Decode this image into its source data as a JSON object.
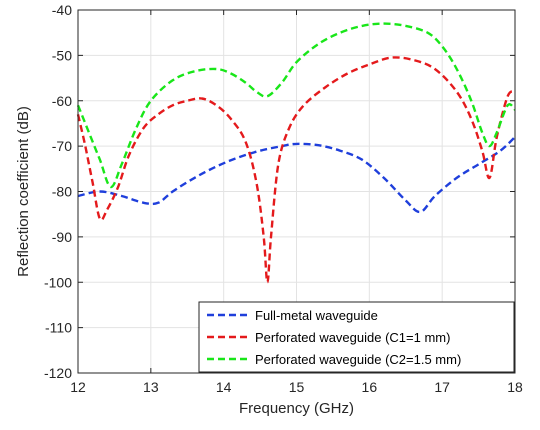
{
  "chart_data": {
    "type": "line",
    "xlabel": "Frequency (GHz)",
    "ylabel": "Reflection coefficient (dB)",
    "xlim": [
      12,
      18
    ],
    "ylim": [
      -120,
      -40
    ],
    "xticks": [
      12,
      13,
      14,
      15,
      16,
      17,
      18
    ],
    "yticks": [
      -120,
      -110,
      -100,
      -90,
      -80,
      -70,
      -60,
      -50,
      -40
    ],
    "xtick_labels": [
      "12",
      "13",
      "14",
      "15",
      "16",
      "17",
      "18"
    ],
    "ytick_labels": [
      "-120",
      "-110",
      "-100",
      "-90",
      "-80",
      "-70",
      "-60",
      "-50",
      "-40"
    ],
    "grid": true,
    "legend_position": "bottom-right",
    "series": [
      {
        "name": "Full-metal waveguide",
        "color": "#1f3fdb",
        "x": [
          12.0,
          12.3,
          12.6,
          12.9,
          13.1,
          13.3,
          13.6,
          13.9,
          14.2,
          14.5,
          14.8,
          15.0,
          15.3,
          15.6,
          15.9,
          16.2,
          16.5,
          16.7,
          16.9,
          17.2,
          17.5,
          17.8,
          18.0
        ],
        "y": [
          -81,
          -80,
          -81,
          -82.5,
          -82.5,
          -80,
          -77,
          -74.5,
          -72.5,
          -71,
          -70,
          -69.5,
          -69.8,
          -71,
          -73,
          -77,
          -82,
          -84.5,
          -81,
          -77,
          -74,
          -71,
          -68
        ]
      },
      {
        "name": "Perforated waveguide (C1=1 mm)",
        "color": "#e41a1c",
        "x": [
          12.0,
          12.1,
          12.2,
          12.3,
          12.4,
          12.55,
          12.7,
          12.9,
          13.1,
          13.3,
          13.5,
          13.7,
          13.9,
          14.1,
          14.3,
          14.45,
          14.55,
          14.6,
          14.65,
          14.75,
          14.9,
          15.1,
          15.4,
          15.7,
          16.0,
          16.3,
          16.6,
          16.9,
          17.2,
          17.4,
          17.55,
          17.65,
          17.75,
          17.9,
          18.0
        ],
        "y": [
          -63,
          -70,
          -78,
          -86,
          -84,
          -79,
          -72,
          -66,
          -63,
          -61,
          -60,
          -59.5,
          -61,
          -64,
          -69,
          -78,
          -90,
          -100,
          -90,
          -74,
          -66,
          -61,
          -57,
          -54,
          -52,
          -50.5,
          -51,
          -53,
          -58,
          -64,
          -71,
          -77,
          -68,
          -59,
          -58
        ]
      },
      {
        "name": "Perforated waveguide (C2=1.5 mm)",
        "color": "#19e619",
        "x": [
          12.0,
          12.15,
          12.3,
          12.45,
          12.6,
          12.8,
          13.0,
          13.3,
          13.6,
          13.9,
          14.1,
          14.3,
          14.45,
          14.6,
          14.8,
          15.0,
          15.3,
          15.6,
          15.9,
          16.2,
          16.5,
          16.8,
          17.0,
          17.2,
          17.4,
          17.55,
          17.65,
          17.75,
          17.9,
          18.0
        ],
        "y": [
          -61,
          -67,
          -73,
          -79,
          -74,
          -66,
          -60,
          -55.5,
          -53.5,
          -53,
          -54,
          -56,
          -58,
          -59,
          -56,
          -51.5,
          -47.5,
          -45,
          -43.5,
          -43,
          -43.5,
          -45,
          -48,
          -53,
          -60,
          -67,
          -70,
          -67,
          -61,
          -62
        ]
      }
    ]
  }
}
